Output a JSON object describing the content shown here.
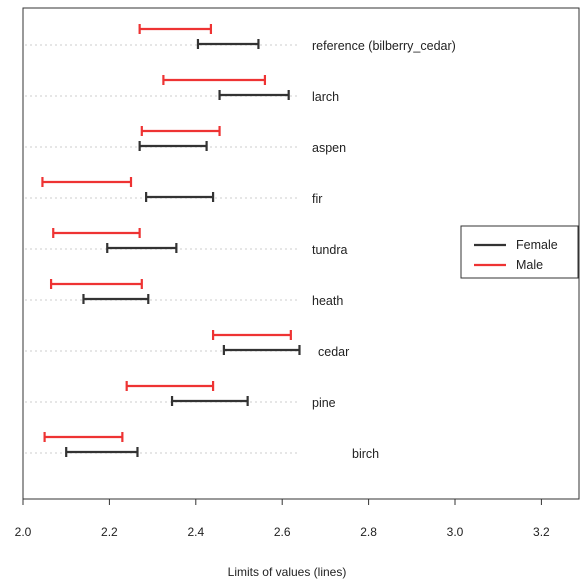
{
  "chart_data": {
    "type": "interval",
    "title": "",
    "xlabel": "Limits of values (lines)",
    "ylabel": "",
    "xlim": [
      2.0,
      3.25
    ],
    "xticks": [
      2.0,
      2.2,
      2.4,
      2.6,
      2.8,
      3.0,
      3.2
    ],
    "xtick_labels": [
      "2.0",
      "2.2",
      "2.4",
      "2.6",
      "2.8",
      "3.0",
      "3.2"
    ],
    "grid": "dotted horizontal guide per category",
    "legend_position": "right",
    "categories": [
      "reference (bilberry_cedar)",
      "larch",
      "aspen",
      "fir",
      "tundra",
      "heath",
      "cedar",
      "pine",
      "birch"
    ],
    "series": [
      {
        "name": "Female",
        "color": "#333333",
        "intervals": [
          [
            2.405,
            2.545
          ],
          [
            2.455,
            2.615
          ],
          [
            2.27,
            2.425
          ],
          [
            2.285,
            2.44
          ],
          [
            2.195,
            2.355
          ],
          [
            2.14,
            2.29
          ],
          [
            2.465,
            2.64
          ],
          [
            2.345,
            2.52
          ],
          [
            2.1,
            2.265
          ]
        ]
      },
      {
        "name": "Male",
        "color": "#ee3333",
        "intervals": [
          [
            2.27,
            2.435
          ],
          [
            2.325,
            2.56
          ],
          [
            2.275,
            2.455
          ],
          [
            2.045,
            2.25
          ],
          [
            2.07,
            2.27
          ],
          [
            2.065,
            2.275
          ],
          [
            2.44,
            2.62
          ],
          [
            2.24,
            2.44
          ],
          [
            2.05,
            2.23
          ]
        ]
      }
    ]
  }
}
